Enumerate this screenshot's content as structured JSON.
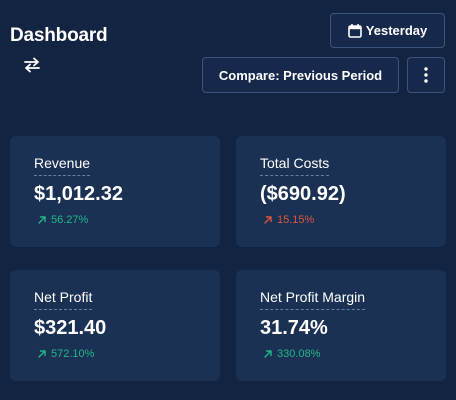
{
  "header": {
    "title": "Dashboard",
    "swap_icon": "swap-arrows-icon",
    "date_button_label": "Yesterday",
    "date_button_icon": "calendar-icon",
    "compare_button_label": "Compare: Previous Period",
    "more_button_icon": "more-vertical-icon"
  },
  "colors": {
    "background": "#132442",
    "card": "#1a3154",
    "positive": "#1fb889",
    "negative": "#e0533d"
  },
  "cards": [
    {
      "label": "Revenue",
      "value": "$1,012.32",
      "change": "56.27%",
      "trend": "positive"
    },
    {
      "label": "Total Costs",
      "value": "($690.92)",
      "change": "15.15%",
      "trend": "negative"
    },
    {
      "label": "Net Profit",
      "value": "$321.40",
      "change": "572.10%",
      "trend": "positive"
    },
    {
      "label": "Net Profit Margin",
      "value": "31.74%",
      "change": "330.08%",
      "trend": "positive"
    }
  ]
}
